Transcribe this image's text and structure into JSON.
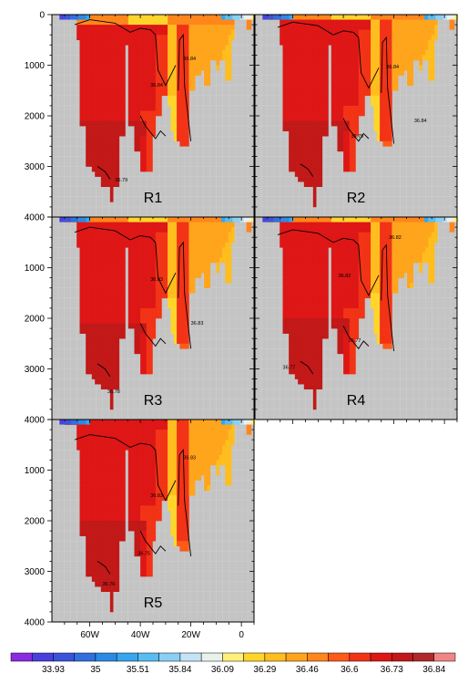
{
  "chart_data": {
    "type": "heatmap",
    "description_free": true,
    "y_axis": {
      "ticks": [
        0,
        1000,
        2000,
        3000,
        4000
      ],
      "range": [
        0,
        4000
      ],
      "inverted": true
    },
    "x_axis": {
      "ticks": [
        "60W",
        "40W",
        "20W",
        "0"
      ],
      "range": [
        -75,
        5
      ]
    },
    "panels": [
      {
        "label": "R1",
        "contours": [
          {
            "text": "36.84",
            "pos": [
              -23,
              900
            ]
          },
          {
            "text": "36.84",
            "pos": [
              -36,
              1420
            ]
          },
          {
            "text": "36.79",
            "pos": [
              -50,
              3300
            ]
          }
        ]
      },
      {
        "label": "R2",
        "contours": [
          {
            "text": "36.84",
            "pos": [
              -23,
              1060
            ]
          },
          {
            "text": "36.79",
            "pos": [
              -37,
              2430
            ]
          },
          {
            "text": "36.84",
            "pos": [
              -12,
              2130
            ]
          }
        ]
      },
      {
        "label": "R3",
        "contours": [
          {
            "text": "36.83",
            "pos": [
              -36,
              1260
            ]
          },
          {
            "text": "36.83",
            "pos": [
              -20,
              2130
            ]
          },
          {
            "text": "36.78",
            "pos": [
              -53,
              3480
            ]
          }
        ]
      },
      {
        "label": "R4",
        "contours": [
          {
            "text": "36.82",
            "pos": [
              -22,
              430
            ]
          },
          {
            "text": "36.82",
            "pos": [
              -42,
              1190
            ]
          },
          {
            "text": "36.77",
            "pos": [
              -38,
              2470
            ]
          },
          {
            "text": "36.77",
            "pos": [
              -64,
              3000
            ]
          }
        ]
      },
      {
        "label": "R5",
        "contours": [
          {
            "text": "36.83",
            "pos": [
              -23,
              780
            ]
          },
          {
            "text": "36.83",
            "pos": [
              -36,
              1530
            ]
          },
          {
            "text": "36.75",
            "pos": [
              -41,
              2680
            ]
          },
          {
            "text": "36.76",
            "pos": [
              -55,
              3280
            ]
          }
        ]
      }
    ],
    "colorbar": {
      "labels": [
        "33.93",
        "35",
        "35.51",
        "35.84",
        "36.09",
        "36.29",
        "36.46",
        "36.6",
        "36.73",
        "36.84"
      ],
      "colors": [
        "#8a2be2",
        "#4b3ee0",
        "#3a53db",
        "#2f6fe0",
        "#2a8ae6",
        "#36a6ee",
        "#57bdf2",
        "#8ad0f4",
        "#c2e4f6",
        "#e9f2ea",
        "#fff07a",
        "#ffd52a",
        "#ffbd1e",
        "#ffa51c",
        "#ff861a",
        "#ff5a16",
        "#f23316",
        "#de1616",
        "#c21818",
        "#b02a2a",
        "#f08585"
      ]
    }
  }
}
